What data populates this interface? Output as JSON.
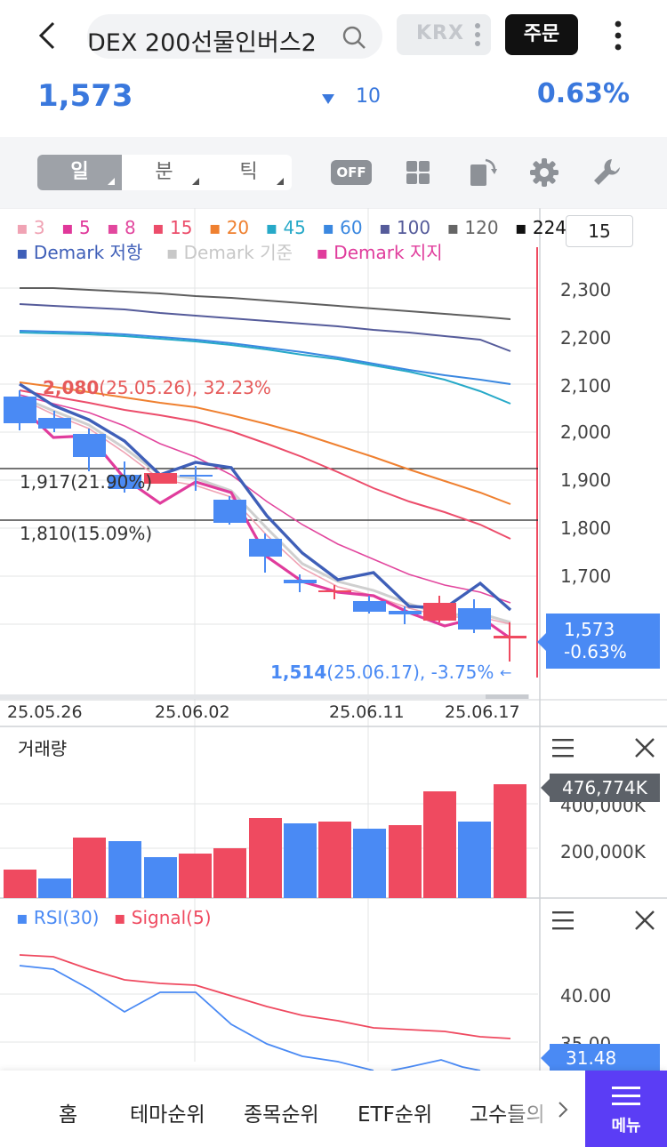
{
  "header": {
    "title": "DEX 200선물인버스2",
    "exchange": "KRX",
    "order_label": "주문"
  },
  "quote": {
    "price": "1,573",
    "change": "10",
    "change_pct": "0.63%",
    "down_color": "#3a78dd"
  },
  "toolbar": {
    "periods": [
      "일",
      "분",
      "틱"
    ],
    "active_period": "일",
    "toggle_label": "OFF",
    "icons": [
      "grid-icon",
      "rotate-icon",
      "gear-icon",
      "wrench-icon"
    ]
  },
  "legend": {
    "ma": [
      {
        "label": "3",
        "color": "#f0a3b4"
      },
      {
        "label": "5",
        "color": "#e0389a"
      },
      {
        "label": "8",
        "color": "#e2479e"
      },
      {
        "label": "15",
        "color": "#ec4d6b"
      },
      {
        "label": "20",
        "color": "#ef8030"
      },
      {
        "label": "45",
        "color": "#27a9c8"
      },
      {
        "label": "60",
        "color": "#3b88e0"
      },
      {
        "label": "100",
        "color": "#555b9a"
      },
      {
        "label": "120",
        "color": "#666666"
      },
      {
        "label": "224",
        "color": "#111111"
      }
    ],
    "demark": [
      {
        "label": "Demark 저항",
        "color": "#3f5fb8"
      },
      {
        "label": "Demark 기준",
        "color": "#c8c8c8"
      },
      {
        "label": "Demark 지지",
        "color": "#e03c9c"
      }
    ]
  },
  "chart": {
    "period_input": "15",
    "y_ticks": [
      "2,300",
      "2,200",
      "2,100",
      "2,000",
      "1,900",
      "1,800",
      "1,700"
    ],
    "dates": [
      "25.05.26",
      "25.06.02",
      "25.06.11",
      "25.06.17"
    ],
    "high_annotation": {
      "price": "2,080",
      "rest": "(25.05.26), 32.23%"
    },
    "low_annotation": {
      "price": "1,514",
      "rest": "(25.06.17), -3.75%"
    },
    "level1_label": "1,917(21.90%)",
    "level2_label": "1,810(15.09%)",
    "current_tag": {
      "price": "1,573",
      "pct": "-0.63%"
    }
  },
  "volume": {
    "title": "거래량",
    "ticks": [
      "400,000K",
      "200,000K"
    ],
    "last_tag": "476,774K"
  },
  "rsi": {
    "legend_rsi": "RSI(30)",
    "legend_signal": "Signal(5)",
    "ticks": [
      "40.00",
      "35.00"
    ],
    "last_tag": "31.48",
    "rsi_color": "#4a8af4",
    "signal_color": "#ef4a60"
  },
  "bottom_nav": {
    "items": [
      "홈",
      "테마순위",
      "종목순위",
      "ETF순위",
      "고수들의"
    ],
    "menu_label": "메뉴"
  }
}
